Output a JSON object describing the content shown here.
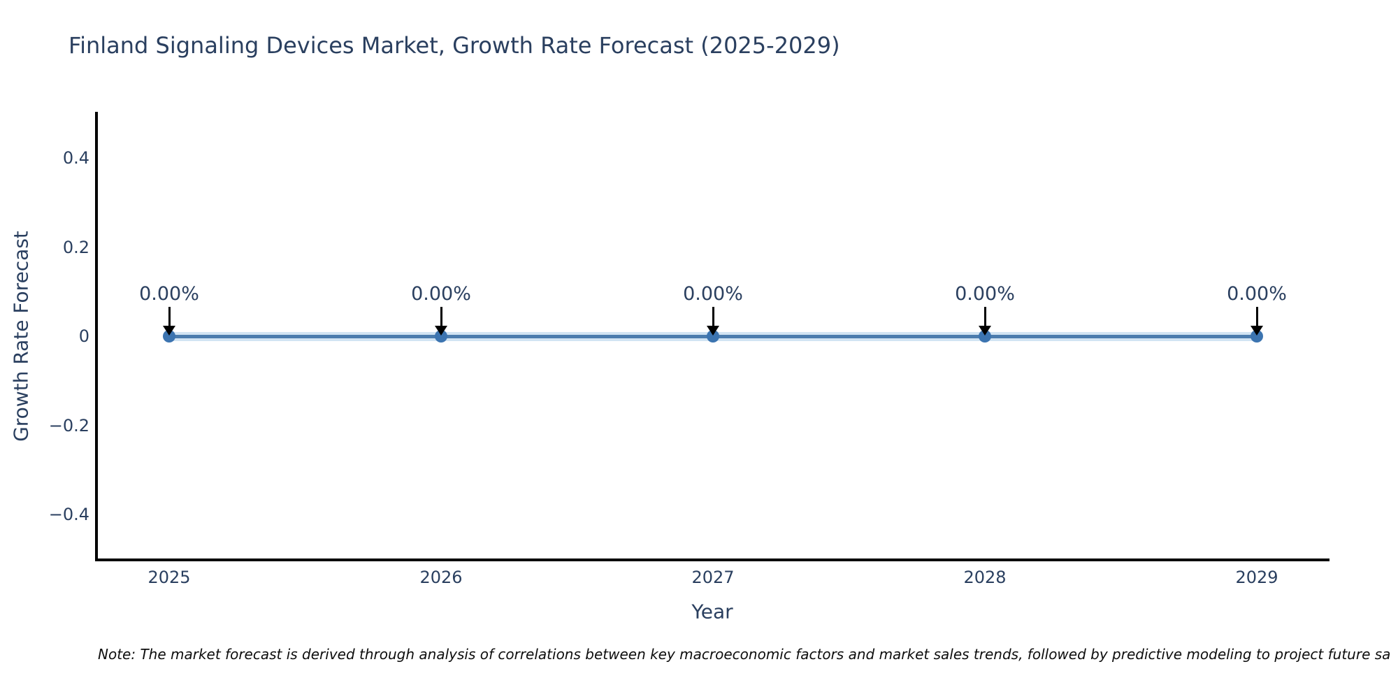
{
  "note": "Note: The market forecast is derived through analysis of correlations between key macroeconomic factors and market sales trends, followed by predictive modeling to project future sa",
  "colors": {
    "title_text": "#2a3f5f",
    "tick_text": "#2a3f5f",
    "annotation_text": "#2a3f5f",
    "line": "#4b7cae",
    "marker": "#3c74b0",
    "axis_line": "#000000",
    "arrow": "#000000",
    "background": "#ffffff"
  },
  "chart_data": {
    "type": "line",
    "title": "Finland Signaling Devices Market, Growth Rate Forecast (2025-2029)",
    "xlabel": "Year",
    "ylabel": "Growth Rate Forecast",
    "x": [
      2025,
      2026,
      2027,
      2028,
      2029
    ],
    "series": [
      {
        "name": "Growth Rate Forecast",
        "values": [
          0,
          0,
          0,
          0,
          0
        ]
      }
    ],
    "point_labels": [
      "0.00%",
      "0.00%",
      "0.00%",
      "0.00%",
      "0.00%"
    ],
    "xticks": [
      2025,
      2026,
      2027,
      2028,
      2029
    ],
    "yticks": [
      0.4,
      0.2,
      0,
      -0.2,
      -0.4
    ],
    "ylim": [
      -0.5,
      0.5
    ],
    "xlim": [
      2024.73,
      2029.27
    ],
    "grid": false,
    "legend": "none",
    "annotation_style": "black down-arrow from label to point"
  }
}
